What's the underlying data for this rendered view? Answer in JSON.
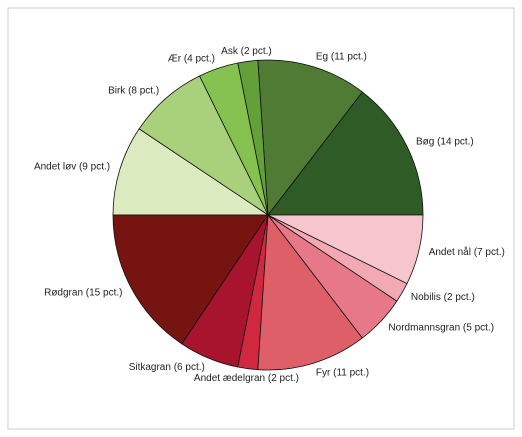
{
  "chart_data": {
    "type": "pie",
    "value_labels": [
      "Bøg (14 pct.)",
      "Eg (11 pct.)",
      "Ask (2 pct.)",
      "Ær (4 pct.)",
      "Birk (8 pct.)",
      "Andet løv (9 pct.)",
      "Rødgran (15 pct.)",
      "Sitkagran (6 pct.)",
      "Andet ædelgran (2 pct.)",
      "Fyr (11 pct.)",
      "Nordmannsgran (5 pct.)",
      "Nobilis (2 pct.)",
      "Andet nål (7 pct.)"
    ],
    "values": [
      14,
      11,
      2,
      4,
      8,
      9,
      15,
      6,
      2,
      11,
      5,
      2,
      7
    ],
    "colors": [
      "#2e5b26",
      "#4f7b34",
      "#63a03a",
      "#86c24f",
      "#a9d07a",
      "#dcebbf",
      "#751411",
      "#a8142e",
      "#d2283f",
      "#df5f68",
      "#e77888",
      "#f2a9b4",
      "#f7c6cd"
    ]
  }
}
